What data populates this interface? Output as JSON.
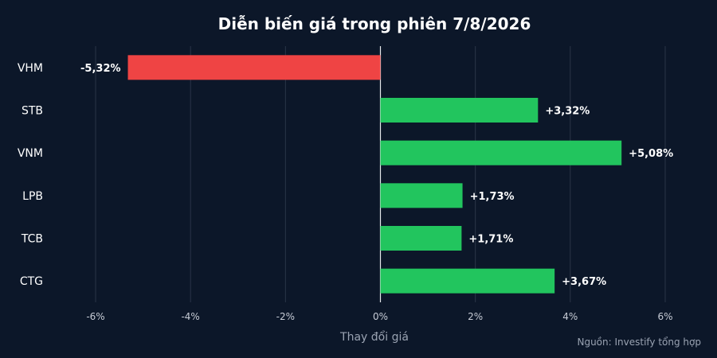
{
  "chart_data": {
    "type": "bar",
    "orientation": "horizontal",
    "title": "Diễn biến giá trong phiên 7/8/2026",
    "xlabel": "Thay đổi giá",
    "source": "Nguồn: Investify tổng hợp",
    "categories": [
      "VHM",
      "STB",
      "VNM",
      "LPB",
      "TCB",
      "CTG"
    ],
    "values": [
      -5.32,
      3.32,
      5.08,
      1.73,
      1.71,
      3.67
    ],
    "value_labels": [
      "-5,32%",
      "+3,32%",
      "+5,08%",
      "+1,73%",
      "+1,71%",
      "+3,67%"
    ],
    "xlim": [
      -6,
      6
    ],
    "x_ticks": [
      -6,
      -4,
      -2,
      0,
      2,
      4,
      6
    ],
    "x_tick_labels": [
      "-6%",
      "-4%",
      "-2%",
      "0%",
      "2%",
      "4%",
      "6%"
    ],
    "grid": true,
    "colors": {
      "positive": "#22c55e",
      "negative": "#ef4444",
      "background": "#0c1729"
    }
  }
}
